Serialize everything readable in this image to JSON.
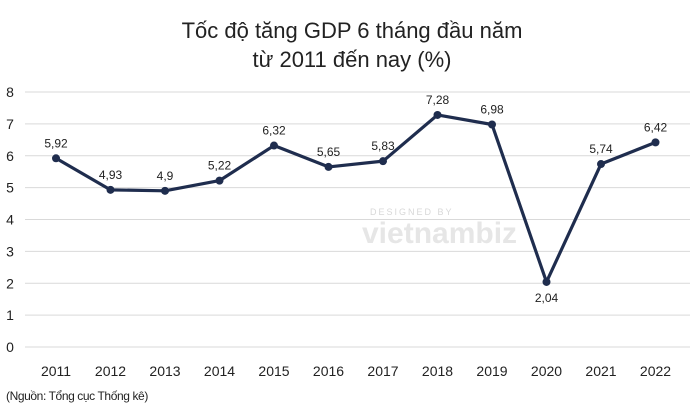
{
  "chart_data": {
    "type": "line",
    "title": [
      "Tốc độ tăng GDP 6 tháng đầu năm",
      "từ 2011 đến nay (%)"
    ],
    "categories": [
      "2011",
      "2012",
      "2013",
      "2014",
      "2015",
      "2016",
      "2017",
      "2018",
      "2019",
      "2020",
      "2021",
      "2022"
    ],
    "values": [
      5.92,
      4.93,
      4.9,
      5.22,
      6.32,
      5.65,
      5.83,
      7.28,
      6.98,
      2.04,
      5.74,
      6.42
    ],
    "data_labels": [
      "5,92",
      "4,93",
      "4,9",
      "5,22",
      "6,32",
      "5,65",
      "5,83",
      "7,28",
      "6,98",
      "2,04",
      "5,74",
      "6,42"
    ],
    "ylim": [
      0,
      8
    ],
    "yticks": [
      "0",
      "1",
      "2",
      "3",
      "4",
      "5",
      "6",
      "7",
      "8"
    ],
    "grid": true,
    "line_color": "#1f2d4e",
    "grid_color": "#d9d9d9"
  },
  "source": "(Nguồn: Tổng cục Thống kê)",
  "watermark": {
    "line1": "DESIGNED BY",
    "line2": "vietnambiz"
  }
}
